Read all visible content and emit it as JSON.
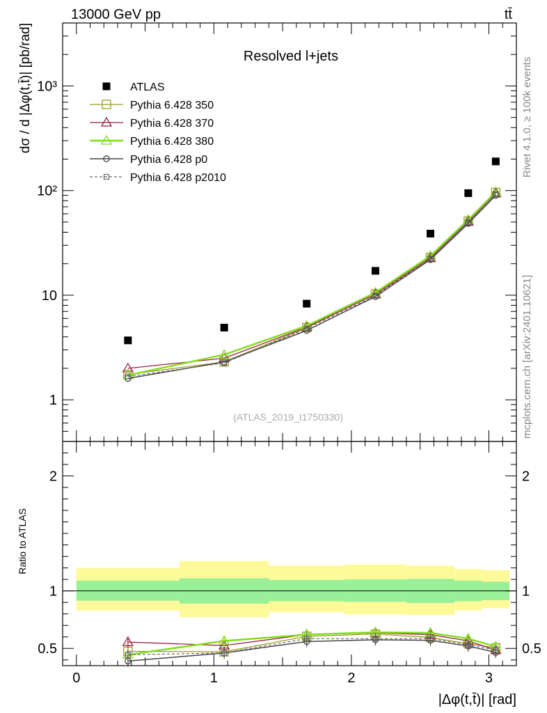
{
  "header": {
    "energy_label": "13000 GeV pp",
    "process_label": "tt̄",
    "side_label_top": "Rivet 4.1.0, ≥ 100k events",
    "side_label_bottom": "mcplots.cern.ch [arXiv:2401.10621]",
    "analysis_id": "(ATLAS_2019_I1750330)",
    "title": "Resolved l+jets"
  },
  "colors": {
    "data": "#000000",
    "p350": "#9a9a22",
    "p370": "#9a1e3c",
    "p380": "#7fdc19",
    "p0": "#444444",
    "p2010": "#666666",
    "band_inner": "#99f099",
    "band_outer": "#fffa99"
  },
  "chart_data": [
    {
      "type": "scatter",
      "panel": "main",
      "title": "Resolved l+jets",
      "xlabel": "|Δφ(t,t̄)| [rad]",
      "ylabel": "dσ / d |Δφ(t,t̄)| [pb/rad]",
      "yscale": "log",
      "xlim": [
        -0.1,
        3.2
      ],
      "ylim": [
        0.4,
        4000
      ],
      "ytick_labels": [
        "1",
        "10",
        "10²",
        "10³"
      ],
      "bin_edges": [
        0.0,
        0.75,
        1.4,
        1.95,
        2.4,
        2.75,
        2.95,
        3.15
      ],
      "x": [
        0.375,
        1.075,
        1.675,
        2.175,
        2.575,
        2.85,
        3.05
      ],
      "series": [
        {
          "name": "ATLAS",
          "key": "data",
          "values": [
            3.7,
            4.9,
            8.3,
            17.1,
            38.8,
            94.5,
            190
          ]
        },
        {
          "name": "Pythia 6.428 350",
          "key": "p350",
          "values": [
            1.75,
            2.3,
            4.9,
            10.3,
            23.0,
            51.0,
            96
          ]
        },
        {
          "name": "Pythia 6.428 370",
          "key": "p370",
          "values": [
            2.0,
            2.5,
            4.95,
            10.2,
            22.6,
            50.5,
            94
          ]
        },
        {
          "name": "Pythia 6.428 380",
          "key": "p380",
          "values": [
            1.72,
            2.7,
            5.1,
            10.6,
            23.8,
            52.5,
            97
          ]
        },
        {
          "name": "Pythia 6.428 p0",
          "key": "p0",
          "values": [
            1.6,
            2.3,
            4.6,
            9.7,
            21.9,
            48.5,
            90
          ]
        },
        {
          "name": "Pythia 6.428 p2010",
          "key": "p2010",
          "values": [
            1.67,
            2.25,
            4.8,
            9.9,
            22.5,
            50.0,
            93
          ]
        }
      ]
    },
    {
      "type": "line",
      "panel": "ratio",
      "xlabel": "|Δφ(t,t̄)| [rad]",
      "ylabel": "Ratio to ATLAS",
      "xlim": [
        -0.1,
        3.2
      ],
      "ylim": [
        0.35,
        2.3
      ],
      "xtick_labels": [
        "0",
        "1",
        "2",
        "3"
      ],
      "ytick_labels": [
        "0.5",
        "1",
        "2"
      ],
      "bin_edges": [
        0.0,
        0.75,
        1.4,
        1.95,
        2.4,
        2.75,
        2.95,
        3.15
      ],
      "x": [
        0.375,
        1.075,
        1.675,
        2.175,
        2.575,
        2.85,
        3.05
      ],
      "band_inner": {
        "low": [
          0.915,
          0.89,
          0.91,
          0.905,
          0.895,
          0.91,
          0.92
        ],
        "high": [
          1.09,
          1.11,
          1.095,
          1.1,
          1.105,
          1.09,
          1.08
        ]
      },
      "band_outer": {
        "low": [
          0.83,
          0.77,
          0.815,
          0.795,
          0.79,
          0.83,
          0.85
        ],
        "high": [
          1.2,
          1.26,
          1.22,
          1.23,
          1.22,
          1.19,
          1.18
        ]
      },
      "series": [
        {
          "name": "Pythia 6.428 350",
          "key": "p350",
          "values": [
            0.475,
            0.47,
            0.605,
            0.625,
            0.595,
            0.54,
            0.505
          ]
        },
        {
          "name": "Pythia 6.428 370",
          "key": "p370",
          "values": [
            0.555,
            0.525,
            0.62,
            0.635,
            0.62,
            0.565,
            0.485
          ]
        },
        {
          "name": "Pythia 6.428 380",
          "key": "p380",
          "values": [
            0.445,
            0.565,
            0.62,
            0.64,
            0.635,
            0.585,
            0.515
          ]
        },
        {
          "name": "Pythia 6.428 p0",
          "key": "p0",
          "values": [
            0.39,
            0.46,
            0.56,
            0.575,
            0.57,
            0.52,
            0.465
          ]
        },
        {
          "name": "Pythia 6.428 p2010",
          "key": "p2010",
          "values": [
            0.445,
            0.46,
            0.585,
            0.585,
            0.585,
            0.53,
            0.485
          ]
        }
      ]
    }
  ]
}
